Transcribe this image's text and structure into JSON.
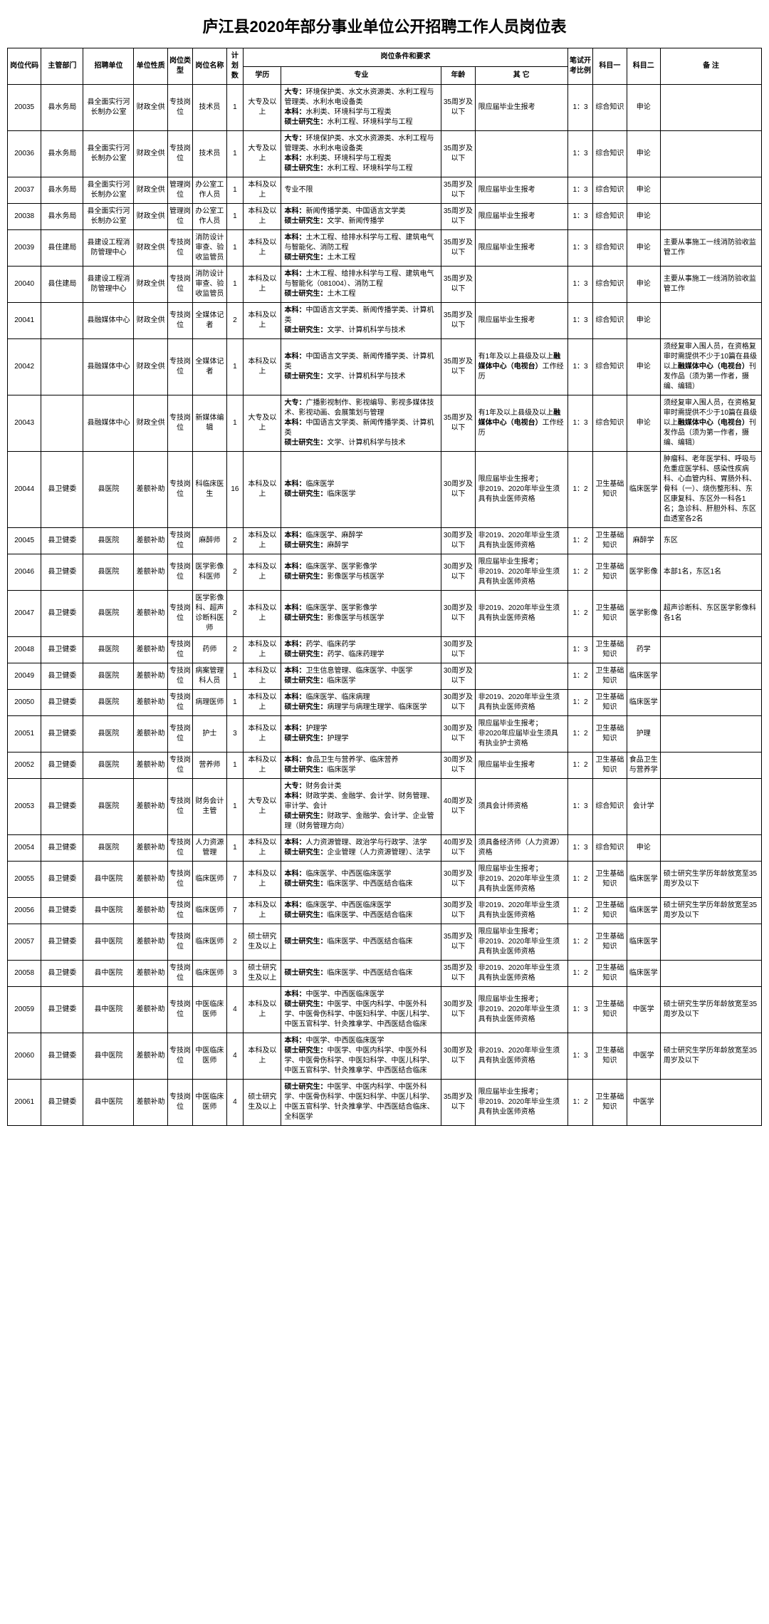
{
  "title": "庐江县2020年部分事业单位公开招聘工作人员岗位表",
  "headers": {
    "code": "岗位代码",
    "dept": "主管部门",
    "unit": "招聘单位",
    "nature": "单位性质",
    "posType": "岗位类型",
    "posName": "岗位名称",
    "plan": "计划数",
    "reqGroup": "岗位条件和要求",
    "edu": "学历",
    "major": "专业",
    "age": "年龄",
    "other": "其 它",
    "ratio": "笔试开考比例",
    "sub1": "科目一",
    "sub2": "科目二",
    "remark": "备 注"
  },
  "rows": [
    {
      "code": "20035",
      "dept": "县水务局",
      "unit": "县全面实行河长制办公室",
      "nature": "财政全供",
      "posType": "专技岗位",
      "posName": "技术员",
      "plan": "1",
      "edu": "大专及以上",
      "major": "<b>大专：</b>环境保护类、水文水资源类、水利工程与管理类、水利水电设备类<br><b>本科：</b>水利类、环境科学与工程类<br><b>硕士研究生：</b>水利工程、环境科学与工程",
      "age": "35周岁及以下",
      "other": "限应届毕业生报考",
      "ratio": "1：3",
      "s1": "综合知识",
      "s2": "申论",
      "remark": ""
    },
    {
      "code": "20036",
      "dept": "县水务局",
      "unit": "县全面实行河长制办公室",
      "nature": "财政全供",
      "posType": "专技岗位",
      "posName": "技术员",
      "plan": "1",
      "edu": "大专及以上",
      "major": "<b>大专：</b>环境保护类、水文水资源类、水利工程与管理类、水利水电设备类<br><b>本科：</b>水利类、环境科学与工程类<br><b>硕士研究生：</b>水利工程、环境科学与工程",
      "age": "35周岁及以下",
      "other": "",
      "ratio": "1：3",
      "s1": "综合知识",
      "s2": "申论",
      "remark": ""
    },
    {
      "code": "20037",
      "dept": "县水务局",
      "unit": "县全面实行河长制办公室",
      "nature": "财政全供",
      "posType": "管理岗位",
      "posName": "办公室工作人员",
      "plan": "1",
      "edu": "本科及以上",
      "major": "专业不限",
      "age": "35周岁及以下",
      "other": "限应届毕业生报考",
      "ratio": "1：3",
      "s1": "综合知识",
      "s2": "申论",
      "remark": ""
    },
    {
      "code": "20038",
      "dept": "县水务局",
      "unit": "县全面实行河长制办公室",
      "nature": "财政全供",
      "posType": "管理岗位",
      "posName": "办公室工作人员",
      "plan": "1",
      "edu": "本科及以上",
      "major": "<b>本科：</b>新闻传播学类、中国语言文学类<br><b>硕士研究生：</b>文学、新闻传播学",
      "age": "35周岁及以下",
      "other": "限应届毕业生报考",
      "ratio": "1：3",
      "s1": "综合知识",
      "s2": "申论",
      "remark": ""
    },
    {
      "code": "20039",
      "dept": "县住建局",
      "unit": "县建设工程消防管理中心",
      "nature": "财政全供",
      "posType": "专技岗位",
      "posName": "消防设计审查、验收监管员",
      "plan": "1",
      "edu": "本科及以上",
      "major": "<b>本科：</b>土木工程、给排水科学与工程、建筑电气与智能化、消防工程<br><b>硕士研究生：</b>土木工程",
      "age": "35周岁及以下",
      "other": "限应届毕业生报考",
      "ratio": "1：3",
      "s1": "综合知识",
      "s2": "申论",
      "remark": "主要从事施工一线消防验收监管工作"
    },
    {
      "code": "20040",
      "dept": "县住建局",
      "unit": "县建设工程消防管理中心",
      "nature": "财政全供",
      "posType": "专技岗位",
      "posName": "消防设计审查、验收监管员",
      "plan": "1",
      "edu": "本科及以上",
      "major": "<b>本科：</b>土木工程、给排水科学与工程、建筑电气与智能化（081004）、消防工程<br><b>硕士研究生：</b>土木工程",
      "age": "35周岁及以下",
      "other": "",
      "ratio": "1：3",
      "s1": "综合知识",
      "s2": "申论",
      "remark": "主要从事施工一线消防验收监管工作"
    },
    {
      "code": "20041",
      "dept": "",
      "unit": "县融媒体中心",
      "nature": "财政全供",
      "posType": "专技岗位",
      "posName": "全媒体记者",
      "plan": "2",
      "edu": "本科及以上",
      "major": "<b>本科：</b>中国语言文学类、新闻传播学类、计算机类<br><b>硕士研究生：</b>文学、计算机科学与技术",
      "age": "35周岁及以下",
      "other": "限应届毕业生报考",
      "ratio": "1：3",
      "s1": "综合知识",
      "s2": "申论",
      "remark": ""
    },
    {
      "code": "20042",
      "dept": "",
      "unit": "县融媒体中心",
      "nature": "财政全供",
      "posType": "专技岗位",
      "posName": "全媒体记者",
      "plan": "1",
      "edu": "本科及以上",
      "major": "<b>本科：</b>中国语言文学类、新闻传播学类、计算机类<br><b>硕士研究生：</b>文学、计算机科学与技术",
      "age": "35周岁及以下",
      "other": "有1年及以上县级及以上<b>融媒体中心（电视台）</b>工作经历",
      "ratio": "1：3",
      "s1": "综合知识",
      "s2": "申论",
      "remark": "须经复审入围人员，在资格复审时需提供不少于10篇在县级以上<b>融媒体中心（电视台）</b>刊发作品（须为第一作者，摄编、编辑）"
    },
    {
      "code": "20043",
      "dept": "",
      "unit": "县融媒体中心",
      "nature": "财政全供",
      "posType": "专技岗位",
      "posName": "新媒体编辑",
      "plan": "1",
      "edu": "大专及以上",
      "major": "<b>大专：</b>广播影视制作、影视编导、影视多媒体技术、影视动画、会展策划与管理<br><b>本科：</b>中国语言文学类、新闻传播学类、计算机类<br><b>硕士研究生：</b>文学、计算机科学与技术",
      "age": "35周岁及以下",
      "other": "有1年及以上县级及以上<b>融媒体中心（电视台）</b>工作经历",
      "ratio": "1：3",
      "s1": "综合知识",
      "s2": "申论",
      "remark": "须经复审入围人员，在资格复审时需提供不少于10篇在县级以上<b>融媒体中心（电视台）</b>刊发作品（须为第一作者，摄编、编辑）"
    },
    {
      "code": "20044",
      "dept": "县卫健委",
      "unit": "县医院",
      "nature": "差额补助",
      "posType": "专技岗位",
      "posName": "科临床医生",
      "plan": "16",
      "edu": "本科及以上",
      "major": "<b>本科：</b>临床医学<br><b>硕士研究生：</b>临床医学",
      "age": "30周岁及以下",
      "other": "限应届毕业生报考；<br>非2019、2020年毕业生须具有执业医师资格",
      "ratio": "1：2",
      "s1": "卫生基础知识",
      "s2": "临床医学",
      "remark": "肿瘤科、老年医学科、呼吸与危重症医学科、感染性疾病科、心血管内科、胃肠外科、骨科（一）、烧伤整形科、东区康复科、东区外一科各1名；急诊科、肝胆外科、东区血透室各2名"
    },
    {
      "code": "20045",
      "dept": "县卫健委",
      "unit": "县医院",
      "nature": "差额补助",
      "posType": "专技岗位",
      "posName": "麻醉师",
      "plan": "2",
      "edu": "本科及以上",
      "major": "<b>本科：</b>临床医学、麻醉学<br><b>硕士研究生：</b>麻醉学",
      "age": "30周岁及以下",
      "other": "非2019、2020年毕业生须具有执业医师资格",
      "ratio": "1：2",
      "s1": "卫生基础知识",
      "s2": "麻醉学",
      "remark": "东区"
    },
    {
      "code": "20046",
      "dept": "县卫健委",
      "unit": "县医院",
      "nature": "差额补助",
      "posType": "专技岗位",
      "posName": "医学影像科医师",
      "plan": "2",
      "edu": "本科及以上",
      "major": "<b>本科：</b>临床医学、医学影像学<br><b>硕士研究生：</b>影像医学与核医学",
      "age": "30周岁及以下",
      "other": "限应届毕业生报考；<br>非2019、2020年毕业生须具有执业医师资格",
      "ratio": "1：2",
      "s1": "卫生基础知识",
      "s2": "医学影像",
      "remark": "本部1名，东区1名"
    },
    {
      "code": "20047",
      "dept": "县卫健委",
      "unit": "县医院",
      "nature": "差额补助",
      "posType": "专技岗位",
      "posName": "医学影像科、超声诊断科医师",
      "plan": "2",
      "edu": "本科及以上",
      "major": "<b>本科：</b>临床医学、医学影像学<br><b>硕士研究生：</b>影像医学与核医学",
      "age": "30周岁及以下",
      "other": "非2019、2020年毕业生须具有执业医师资格",
      "ratio": "1：2",
      "s1": "卫生基础知识",
      "s2": "医学影像",
      "remark": "超声诊断科、东区医学影像科各1名"
    },
    {
      "code": "20048",
      "dept": "县卫健委",
      "unit": "县医院",
      "nature": "差额补助",
      "posType": "专技岗位",
      "posName": "药师",
      "plan": "2",
      "edu": "本科及以上",
      "major": "<b>本科：</b>药学、临床药学<br><b>硕士研究生：</b>药学、临床药理学",
      "age": "30周岁及以下",
      "other": "",
      "ratio": "1：3",
      "s1": "卫生基础知识",
      "s2": "药学",
      "remark": ""
    },
    {
      "code": "20049",
      "dept": "县卫健委",
      "unit": "县医院",
      "nature": "差额补助",
      "posType": "专技岗位",
      "posName": "病案管理科人员",
      "plan": "1",
      "edu": "本科及以上",
      "major": "<b>本科：</b>卫生信息管理、临床医学、中医学<br><b>硕士研究生：</b>临床医学",
      "age": "30周岁及以下",
      "other": "",
      "ratio": "1：2",
      "s1": "卫生基础知识",
      "s2": "临床医学",
      "remark": ""
    },
    {
      "code": "20050",
      "dept": "县卫健委",
      "unit": "县医院",
      "nature": "差额补助",
      "posType": "专技岗位",
      "posName": "病理医师",
      "plan": "1",
      "edu": "本科及以上",
      "major": "<b>本科：</b>临床医学、临床病理<br><b>硕士研究生：</b>病理学与病理生理学、临床医学",
      "age": "30周岁及以下",
      "other": "非2019、2020年毕业生须具有执业医师资格",
      "ratio": "1：2",
      "s1": "卫生基础知识",
      "s2": "临床医学",
      "remark": ""
    },
    {
      "code": "20051",
      "dept": "县卫健委",
      "unit": "县医院",
      "nature": "差额补助",
      "posType": "专技岗位",
      "posName": "护士",
      "plan": "3",
      "edu": "本科及以上",
      "major": "<b>本科：</b>护理学<br><b>硕士研究生：</b>护理学",
      "age": "30周岁及以下",
      "other": "限应届毕业生报考；<br>非2020年应届毕业生须具有执业护士资格",
      "ratio": "1：2",
      "s1": "卫生基础知识",
      "s2": "护理",
      "remark": ""
    },
    {
      "code": "20052",
      "dept": "县卫健委",
      "unit": "县医院",
      "nature": "差额补助",
      "posType": "专技岗位",
      "posName": "营养师",
      "plan": "1",
      "edu": "本科及以上",
      "major": "<b>本科：</b>食品卫生与营养学、临床营养<br><b>硕士研究生：</b>临床医学",
      "age": "30周岁及以下",
      "other": "限应届毕业生报考",
      "ratio": "1：2",
      "s1": "卫生基础知识",
      "s2": "食品卫生与营养学",
      "remark": ""
    },
    {
      "code": "20053",
      "dept": "县卫健委",
      "unit": "县医院",
      "nature": "差额补助",
      "posType": "专技岗位",
      "posName": "财务会计主管",
      "plan": "1",
      "edu": "大专及以上",
      "major": "<b>大专：</b>财务会计类<br><b>本科：</b>财政学类、金融学、会计学、财务管理、审计学、会计<br><b>硕士研究生：</b>财政学、金融学、会计学、企业管理（财务管理方向）",
      "age": "40周岁及以下",
      "other": "须具会计师资格",
      "ratio": "1：3",
      "s1": "综合知识",
      "s2": "会计学",
      "remark": ""
    },
    {
      "code": "20054",
      "dept": "县卫健委",
      "unit": "县医院",
      "nature": "差额补助",
      "posType": "专技岗位",
      "posName": "人力资源管理",
      "plan": "1",
      "edu": "本科及以上",
      "major": "<b>本科：</b>人力资源管理、政治学与行政学、法学<br><b>硕士研究生：</b>企业管理（人力资源管理）、法学",
      "age": "40周岁及以下",
      "other": "须具备经济师（人力资源）资格",
      "ratio": "1：3",
      "s1": "综合知识",
      "s2": "申论",
      "remark": ""
    },
    {
      "code": "20055",
      "dept": "县卫健委",
      "unit": "县中医院",
      "nature": "差额补助",
      "posType": "专技岗位",
      "posName": "临床医师",
      "plan": "7",
      "edu": "本科及以上",
      "major": "<b>本科：</b>临床医学、中西医临床医学<br><b>硕士研究生：</b>临床医学、中西医结合临床",
      "age": "30周岁及以下",
      "other": "限应届毕业生报考；<br>非2019、2020年毕业生须具有执业医师资格",
      "ratio": "1：2",
      "s1": "卫生基础知识",
      "s2": "临床医学",
      "remark": "硕士研究生学历年龄放宽至35周岁及以下"
    },
    {
      "code": "20056",
      "dept": "县卫健委",
      "unit": "县中医院",
      "nature": "差额补助",
      "posType": "专技岗位",
      "posName": "临床医师",
      "plan": "7",
      "edu": "本科及以上",
      "major": "<b>本科：</b>临床医学、中西医临床医学<br><b>硕士研究生：</b>临床医学、中西医结合临床",
      "age": "30周岁及以下",
      "other": "非2019、2020年毕业生须具有执业医师资格",
      "ratio": "1：2",
      "s1": "卫生基础知识",
      "s2": "临床医学",
      "remark": "硕士研究生学历年龄放宽至35周岁及以下"
    },
    {
      "code": "20057",
      "dept": "县卫健委",
      "unit": "县中医院",
      "nature": "差额补助",
      "posType": "专技岗位",
      "posName": "临床医师",
      "plan": "2",
      "edu": "硕士研究生及以上",
      "major": "<b>硕士研究生：</b>临床医学、中西医结合临床",
      "age": "35周岁及以下",
      "other": "限应届毕业生报考；<br>非2019、2020年毕业生须具有执业医师资格",
      "ratio": "1：2",
      "s1": "卫生基础知识",
      "s2": "临床医学",
      "remark": ""
    },
    {
      "code": "20058",
      "dept": "县卫健委",
      "unit": "县中医院",
      "nature": "差额补助",
      "posType": "专技岗位",
      "posName": "临床医师",
      "plan": "3",
      "edu": "硕士研究生及以上",
      "major": "<b>硕士研究生：</b>临床医学、中西医结合临床",
      "age": "35周岁及以下",
      "other": "非2019、2020年毕业生须具有执业医师资格",
      "ratio": "1：2",
      "s1": "卫生基础知识",
      "s2": "临床医学",
      "remark": ""
    },
    {
      "code": "20059",
      "dept": "县卫健委",
      "unit": "县中医院",
      "nature": "差额补助",
      "posType": "专技岗位",
      "posName": "中医临床医师",
      "plan": "4",
      "edu": "本科及以上",
      "major": "<b>本科：</b>中医学、中西医临床医学<br><b>硕士研究生：</b>中医学、中医内科学、中医外科学、中医骨伤科学、中医妇科学、中医儿科学、中医五官科学、针灸推拿学、中西医结合临床",
      "age": "30周岁及以下",
      "other": "限应届毕业生报考；<br>非2019、2020年毕业生须具有执业医师资格",
      "ratio": "1：3",
      "s1": "卫生基础知识",
      "s2": "中医学",
      "remark": "硕士研究生学历年龄放宽至35周岁及以下"
    },
    {
      "code": "20060",
      "dept": "县卫健委",
      "unit": "县中医院",
      "nature": "差额补助",
      "posType": "专技岗位",
      "posName": "中医临床医师",
      "plan": "4",
      "edu": "本科及以上",
      "major": "<b>本科：</b>中医学、中西医临床医学<br><b>硕士研究生：</b>中医学、中医内科学、中医外科学、中医骨伤科学、中医妇科学、中医儿科学、中医五官科学、针灸推拿学、中西医结合临床",
      "age": "30周岁及以下",
      "other": "非2019、2020年毕业生须具有执业医师资格",
      "ratio": "1：3",
      "s1": "卫生基础知识",
      "s2": "中医学",
      "remark": "硕士研究生学历年龄放宽至35周岁及以下"
    },
    {
      "code": "20061",
      "dept": "县卫健委",
      "unit": "县中医院",
      "nature": "差额补助",
      "posType": "专技岗位",
      "posName": "中医临床医师",
      "plan": "4",
      "edu": "硕士研究生及以上",
      "major": "<b>硕士研究生：</b>中医学、中医内科学、中医外科学、中医骨伤科学、中医妇科学、中医儿科学、中医五官科学、针灸推拿学、中西医结合临床、全科医学",
      "age": "35周岁及以下",
      "other": "限应届毕业生报考；<br>非2019、2020年毕业生须具有执业医师资格",
      "ratio": "1：2",
      "s1": "卫生基础知识",
      "s2": "中医学",
      "remark": ""
    }
  ]
}
